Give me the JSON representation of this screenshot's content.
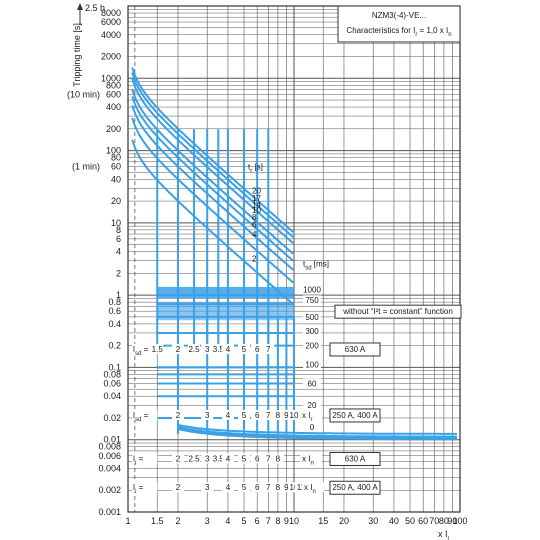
{
  "chart_data": {
    "type": "line",
    "scale": {
      "x": "log",
      "y": "log"
    },
    "xlim": [
      1,
      100
    ],
    "ylim": [
      0.001,
      10000
    ],
    "grid": true,
    "title": "NZM3(-4)-VE...",
    "subtitle": "Characteristics for I",
    "subtitle_sub": "r",
    "subtitle_rest": " = 1,0 x I",
    "subtitle_sub2": "n",
    "ylabel": "Tripping time [s]",
    "y_top_marker": "2.5 h",
    "y_extra_labels": [
      {
        "text": "(10 min)",
        "y": 600
      },
      {
        "text": "(1 min)",
        "y": 60
      }
    ],
    "x_unit": "x I",
    "x_unit_sub": "r",
    "x_ticks": [
      1,
      1.5,
      2,
      3,
      4,
      5,
      6,
      7,
      8,
      9,
      10,
      15,
      20,
      30,
      40,
      50,
      60,
      70,
      80,
      90,
      100
    ],
    "x_tick_labels": [
      "1",
      "1.5",
      "2",
      "3",
      "4",
      "5",
      "6",
      "7",
      "8",
      "9",
      "10",
      "15",
      "20",
      "30",
      "40",
      "50",
      "60",
      "70",
      "80",
      "90",
      "100"
    ],
    "y_ticks": [
      8000,
      6000,
      4000,
      2000,
      1000,
      800,
      600,
      400,
      200,
      100,
      80,
      60,
      40,
      20,
      10,
      8,
      6,
      4,
      2,
      1,
      0.8,
      0.6,
      0.4,
      0.2,
      0.1,
      0.08,
      0.06,
      0.04,
      0.02,
      0.01,
      0.008,
      0.006,
      0.004,
      0.002,
      0.001
    ],
    "y_tick_labels": [
      "8000",
      "6000",
      "4000",
      "2000",
      "1000",
      "800",
      "600",
      "400",
      "200",
      "100",
      "80",
      "60",
      "40",
      "20",
      "10",
      "8",
      "6",
      "4",
      "2",
      "1",
      "0.8",
      "0.6",
      "0.4",
      "0.2",
      "0.1",
      "0.08",
      "0.06",
      "0.04",
      "0.02",
      "0.01",
      "0.008",
      "0.006",
      "0.004",
      "0.002",
      "0.001"
    ],
    "tr_header": "t",
    "tr_header_sub": "r",
    "tr_header_unit": " [s]",
    "tr_values": [
      "20",
      "17",
      "14",
      "10",
      "8",
      "6",
      "4",
      "2"
    ],
    "tsd_header": "t",
    "tsd_header_sub": "sd",
    "tsd_header_unit": " [ms]",
    "tsd_values": [
      "1000",
      "750",
      "500",
      "300",
      "200",
      "100",
      "60",
      "20",
      "0"
    ],
    "isd_row1": {
      "label": "I",
      "label_sub": "sd",
      "label_eq": " = ",
      "values": [
        "1.5",
        "2",
        "2.5",
        "3",
        "3.5",
        "4",
        "5",
        "6",
        "7"
      ],
      "box": "630 A",
      "y": 0.18
    },
    "isd_row2": {
      "label": "I",
      "label_sub": "sd",
      "label_eq": " = ",
      "values": [
        "2",
        "3",
        "4",
        "5",
        "6",
        "7",
        "8",
        "9",
        "10"
      ],
      "unit": "x I",
      "unit_sub": "r",
      "box": "250 A, 400 A",
      "y": 0.022
    },
    "ii_row1": {
      "label": "I",
      "label_sub": "i",
      "label_eq": " = ",
      "values": [
        "2",
        "2.5",
        "3",
        "3.5",
        "4",
        "5",
        "6",
        "7",
        "8"
      ],
      "unit": "x I",
      "unit_sub": "n",
      "box": "630 A",
      "y": 0.0055
    },
    "ii_row2": {
      "label": "I",
      "label_sub": "i",
      "label_eq": " = ",
      "values": [
        "2",
        "3",
        "4",
        "5",
        "6",
        "7",
        "8",
        "9",
        "10",
        "11"
      ],
      "unit": "x I",
      "unit_sub": "n",
      "box": "250 A, 400 A",
      "y": 0.0022
    },
    "note_box": "without “I²t = constant” function",
    "curve_color": "#3aa0e8",
    "frame_color": "#333333",
    "grid_color": "#555555"
  }
}
